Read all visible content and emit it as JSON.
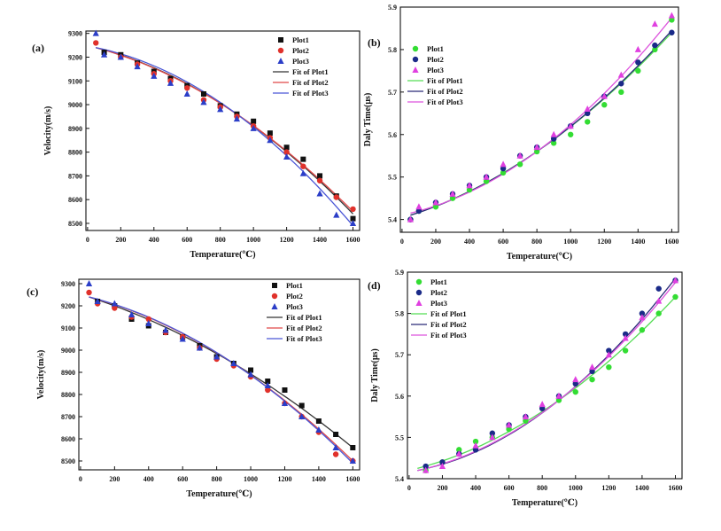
{
  "colors": {
    "plot1": "#111111",
    "plot2": "#e0312b",
    "plot3": "#2b3ec8",
    "fit1": "#333333",
    "fit2": "#e04848",
    "fit3": "#4a56d6",
    "b_plot1": "#33dd33",
    "b_plot2": "#1a2a88",
    "b_plot3": "#e040e0",
    "b_fit1": "#55dd55",
    "b_fit2": "#2a2a78",
    "b_fit3": "#dd55dd"
  },
  "chart_data": [
    {
      "panel": "(a)",
      "type": "scatter",
      "xlabel": "Temperature(℃)",
      "ylabel": "Velocity(m/s)",
      "xlim": [
        -10,
        1640
      ],
      "ylim": [
        8470,
        9310
      ],
      "xticks": [
        0,
        200,
        400,
        600,
        800,
        1000,
        1200,
        1400,
        1600
      ],
      "yticks": [
        8500,
        8600,
        8700,
        8800,
        8900,
        9000,
        9100,
        9200,
        9300
      ],
      "legend_position": "top-right",
      "legend": [
        "Plot1",
        "Plot2",
        "Plot3",
        "Fit of Plot1",
        "Fit of Plot2",
        "Fit of Plot3"
      ],
      "series": [
        {
          "name": "Plot1",
          "marker": "square",
          "color_key": "plot1",
          "x": [
            100,
            200,
            300,
            400,
            500,
            600,
            700,
            800,
            900,
            1000,
            1100,
            1200,
            1300,
            1400,
            1500,
            1600
          ],
          "y": [
            9220,
            9210,
            9175,
            9140,
            9110,
            9080,
            9045,
            8995,
            8960,
            8930,
            8880,
            8820,
            8770,
            8700,
            8615,
            8520
          ]
        },
        {
          "name": "Plot2",
          "marker": "circle",
          "color_key": "plot2",
          "x": [
            50,
            200,
            300,
            400,
            500,
            600,
            700,
            800,
            900,
            1000,
            1100,
            1200,
            1300,
            1400,
            1500,
            1600
          ],
          "y": [
            9260,
            9200,
            9170,
            9130,
            9100,
            9070,
            9020,
            8990,
            8950,
            8910,
            8860,
            8800,
            8740,
            8680,
            8610,
            8560
          ]
        },
        {
          "name": "Plot3",
          "marker": "triangle",
          "color_key": "plot3",
          "x": [
            50,
            100,
            200,
            300,
            400,
            500,
            600,
            700,
            800,
            900,
            1000,
            1100,
            1200,
            1300,
            1400,
            1500,
            1600
          ],
          "y": [
            9300,
            9210,
            9200,
            9160,
            9120,
            9090,
            9045,
            9010,
            8980,
            8940,
            8900,
            8850,
            8780,
            8710,
            8625,
            8535,
            8500
          ]
        }
      ],
      "fits": [
        {
          "name": "Fit of Plot1",
          "color_key": "fit1",
          "x": [
            50,
            1600
          ],
          "y0": 9240,
          "y1": 8540
        },
        {
          "name": "Fit of Plot2",
          "color_key": "fit2",
          "x": [
            50,
            1600
          ],
          "y0": 9240,
          "y1": 8550
        },
        {
          "name": "Fit of Plot3",
          "color_key": "fit3",
          "x": [
            50,
            1600
          ],
          "y0": 9240,
          "y1": 8490
        }
      ]
    },
    {
      "panel": "(b)",
      "type": "scatter",
      "xlabel": "Temperature(℃)",
      "ylabel": "Daly Time(μs)",
      "xlim": [
        -10,
        1640
      ],
      "ylim": [
        5.37,
        5.9
      ],
      "xticks": [
        0,
        200,
        400,
        600,
        800,
        1000,
        1200,
        1400,
        1600
      ],
      "yticks": [
        5.4,
        5.5,
        5.6,
        5.7,
        5.8,
        5.9
      ],
      "legend_position": "top-left",
      "legend": [
        "Plot1",
        "Plot2",
        "Plot3",
        "Fit of Plot1",
        "Fit of Plot2",
        "Fit of Plot3"
      ],
      "series": [
        {
          "name": "Plot1",
          "marker": "circle",
          "color_key": "b_plot1",
          "x": [
            50,
            100,
            200,
            300,
            400,
            500,
            600,
            700,
            800,
            900,
            1000,
            1100,
            1200,
            1300,
            1400,
            1500,
            1600
          ],
          "y": [
            5.4,
            5.42,
            5.43,
            5.45,
            5.47,
            5.49,
            5.51,
            5.53,
            5.56,
            5.58,
            5.6,
            5.63,
            5.67,
            5.7,
            5.75,
            5.8,
            5.87
          ]
        },
        {
          "name": "Plot2",
          "marker": "circle",
          "color_key": "b_plot2",
          "x": [
            50,
            100,
            200,
            300,
            400,
            500,
            600,
            700,
            800,
            900,
            1000,
            1100,
            1200,
            1300,
            1400,
            1500,
            1600
          ],
          "y": [
            5.4,
            5.42,
            5.44,
            5.46,
            5.48,
            5.5,
            5.52,
            5.55,
            5.57,
            5.59,
            5.62,
            5.65,
            5.69,
            5.72,
            5.77,
            5.81,
            5.84
          ]
        },
        {
          "name": "Plot3",
          "marker": "triangle",
          "color_key": "b_plot3",
          "x": [
            50,
            100,
            200,
            300,
            400,
            500,
            600,
            700,
            800,
            900,
            1000,
            1100,
            1200,
            1300,
            1400,
            1500,
            1600
          ],
          "y": [
            5.4,
            5.43,
            5.44,
            5.46,
            5.48,
            5.5,
            5.53,
            5.55,
            5.57,
            5.6,
            5.62,
            5.66,
            5.69,
            5.74,
            5.8,
            5.86,
            5.88
          ]
        }
      ],
      "fits": [
        {
          "name": "Fit of Plot1",
          "color_key": "b_fit1",
          "x": [
            50,
            1600
          ],
          "y0": 5.41,
          "y1": 5.84
        },
        {
          "name": "Fit of Plot2",
          "color_key": "b_fit2",
          "x": [
            50,
            1600
          ],
          "y0": 5.41,
          "y1": 5.845
        },
        {
          "name": "Fit of Plot3",
          "color_key": "b_fit3",
          "x": [
            50,
            1600
          ],
          "y0": 5.415,
          "y1": 5.875
        }
      ]
    },
    {
      "panel": "(c)",
      "type": "scatter",
      "xlabel": "Temperature(℃)",
      "ylabel": "Velocity(m/s)",
      "xlim": [
        -10,
        1640
      ],
      "ylim": [
        8460,
        9320
      ],
      "xticks": [
        0,
        200,
        400,
        600,
        800,
        1000,
        1200,
        1400,
        1600
      ],
      "yticks": [
        8500,
        8600,
        8700,
        8800,
        8900,
        9000,
        9100,
        9200,
        9300
      ],
      "legend_position": "top-right",
      "legend": [
        "Plot1",
        "Plot2",
        "Plot3",
        "Fit of Plot1",
        "Fit of Plot2",
        "Fit of Plot3"
      ],
      "series": [
        {
          "name": "Plot1",
          "marker": "square",
          "color_key": "plot1",
          "x": [
            100,
            200,
            300,
            400,
            500,
            600,
            700,
            800,
            900,
            1000,
            1100,
            1200,
            1300,
            1400,
            1500,
            1600
          ],
          "y": [
            9220,
            9200,
            9140,
            9110,
            9080,
            9060,
            9020,
            8970,
            8940,
            8910,
            8860,
            8820,
            8750,
            8680,
            8620,
            8560
          ]
        },
        {
          "name": "Plot2",
          "marker": "circle",
          "color_key": "plot2",
          "x": [
            50,
            100,
            200,
            300,
            400,
            500,
            600,
            700,
            800,
            900,
            1000,
            1100,
            1200,
            1300,
            1400,
            1500,
            1600
          ],
          "y": [
            9260,
            9210,
            9190,
            9150,
            9140,
            9080,
            9060,
            9010,
            8960,
            8930,
            8880,
            8820,
            8760,
            8700,
            8630,
            8530,
            8500
          ]
        },
        {
          "name": "Plot3",
          "marker": "triangle",
          "color_key": "plot3",
          "x": [
            50,
            100,
            200,
            300,
            400,
            500,
            600,
            700,
            800,
            900,
            1000,
            1100,
            1200,
            1300,
            1400,
            1500,
            1600
          ],
          "y": [
            9300,
            9220,
            9210,
            9160,
            9120,
            9090,
            9050,
            9010,
            8970,
            8940,
            8890,
            8840,
            8760,
            8700,
            8640,
            8560,
            8500
          ]
        }
      ],
      "fits": [
        {
          "name": "Fit of Plot1",
          "color_key": "fit1",
          "x": [
            50,
            1600
          ],
          "y0": 9240,
          "y1": 8560
        },
        {
          "name": "Fit of Plot2",
          "color_key": "fit2",
          "x": [
            50,
            1600
          ],
          "y0": 9240,
          "y1": 8500
        },
        {
          "name": "Fit of Plot3",
          "color_key": "fit3",
          "x": [
            50,
            1600
          ],
          "y0": 9240,
          "y1": 8490
        }
      ]
    },
    {
      "panel": "(d)",
      "type": "scatter",
      "xlabel": "Temperature(℃)",
      "ylabel": "Daly Time(μs)",
      "xlim": [
        -10,
        1640
      ],
      "ylim": [
        5.4,
        5.9
      ],
      "xticks": [
        0,
        200,
        400,
        600,
        800,
        1000,
        1200,
        1400,
        1600
      ],
      "yticks": [
        5.4,
        5.5,
        5.6,
        5.7,
        5.8,
        5.9
      ],
      "legend_position": "top-left",
      "legend": [
        "Plot1",
        "Plot2",
        "Plot3",
        "Fit of Plot1",
        "Fit of Plot2",
        "Fit of Plot3"
      ],
      "series": [
        {
          "name": "Plot1",
          "marker": "circle",
          "color_key": "b_plot1",
          "x": [
            100,
            200,
            300,
            400,
            500,
            600,
            700,
            800,
            900,
            1000,
            1100,
            1200,
            1300,
            1400,
            1500,
            1600
          ],
          "y": [
            5.42,
            5.44,
            5.47,
            5.49,
            5.5,
            5.52,
            5.54,
            5.57,
            5.59,
            5.61,
            5.64,
            5.67,
            5.71,
            5.76,
            5.8,
            5.84
          ]
        },
        {
          "name": "Plot2",
          "marker": "circle",
          "color_key": "b_plot2",
          "x": [
            100,
            200,
            300,
            400,
            500,
            600,
            700,
            800,
            900,
            1000,
            1100,
            1200,
            1300,
            1400,
            1500,
            1600
          ],
          "y": [
            5.43,
            5.44,
            5.46,
            5.47,
            5.51,
            5.53,
            5.55,
            5.57,
            5.6,
            5.63,
            5.66,
            5.71,
            5.75,
            5.8,
            5.86,
            5.88
          ]
        },
        {
          "name": "Plot3",
          "marker": "triangle",
          "color_key": "b_plot3",
          "x": [
            100,
            200,
            300,
            400,
            500,
            600,
            700,
            800,
            900,
            1000,
            1100,
            1200,
            1300,
            1400,
            1500,
            1600
          ],
          "y": [
            5.42,
            5.43,
            5.46,
            5.48,
            5.5,
            5.53,
            5.55,
            5.58,
            5.6,
            5.64,
            5.67,
            5.7,
            5.74,
            5.79,
            5.83,
            5.88
          ]
        }
      ],
      "fits": [
        {
          "name": "Fit of Plot1",
          "color_key": "b_fit1",
          "x": [
            50,
            1600
          ],
          "y0": 5.425,
          "y1": 5.84
        },
        {
          "name": "Fit of Plot2",
          "color_key": "b_fit2",
          "x": [
            50,
            1600
          ],
          "y0": 5.42,
          "y1": 5.885
        },
        {
          "name": "Fit of Plot3",
          "color_key": "b_fit3",
          "x": [
            50,
            1600
          ],
          "y0": 5.42,
          "y1": 5.875
        }
      ]
    }
  ]
}
